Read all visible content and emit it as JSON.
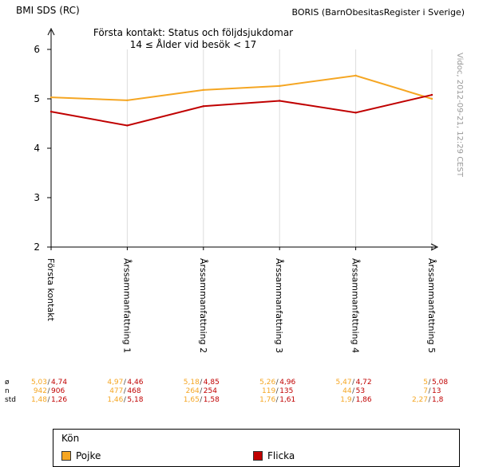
{
  "header": {
    "left_title": "BMI SDS (RC)",
    "right_title": "BORIS (BarnObesitasRegister i Sverige)",
    "side_note": "Vidoc, 2012-09-21, 12:29 CEST"
  },
  "chart_data": {
    "type": "line",
    "title": "Första kontakt: Status och följdsjukdomar",
    "subtitle": "14 ≤ Ålder vid besök < 17",
    "categories": [
      "Första kontakt",
      "Årssammanfattning 1",
      "Årssammanfattning 2",
      "Årssammanfattning 3",
      "Årssammanfattning 4",
      "Årssammanfattning 5"
    ],
    "ylim": [
      2,
      6
    ],
    "yticks": [
      "2",
      "3",
      "4",
      "5",
      "6"
    ],
    "series": [
      {
        "name": "Pojke",
        "color": "#f5a623",
        "values": [
          5.03,
          4.97,
          5.18,
          5.26,
          5.47,
          5.0
        ]
      },
      {
        "name": "Flicka",
        "color": "#c00000",
        "values": [
          4.74,
          4.46,
          4.85,
          4.96,
          4.72,
          5.08
        ]
      }
    ],
    "stats": {
      "row_labels": [
        "ø",
        "n",
        "std"
      ],
      "columns": [
        {
          "mean": [
            "5,03",
            "4,74"
          ],
          "n": [
            "942",
            "906"
          ],
          "std": [
            "1,48",
            "1,26"
          ]
        },
        {
          "mean": [
            "4,97",
            "4,46"
          ],
          "n": [
            "477",
            "468"
          ],
          "std": [
            "1,46",
            "5,18"
          ]
        },
        {
          "mean": [
            "5,18",
            "4,85"
          ],
          "n": [
            "264",
            "254"
          ],
          "std": [
            "1,65",
            "1,58"
          ]
        },
        {
          "mean": [
            "5,26",
            "4,96"
          ],
          "n": [
            "119",
            "135"
          ],
          "std": [
            "1,76",
            "1,61"
          ]
        },
        {
          "mean": [
            "5,47",
            "4,72"
          ],
          "n": [
            "44",
            "53"
          ],
          "std": [
            "1,9",
            "1,86"
          ]
        },
        {
          "mean": [
            "5",
            "5,08"
          ],
          "n": [
            "7",
            "13"
          ],
          "std": [
            "2,27",
            "1,8"
          ]
        }
      ]
    },
    "legend": {
      "title": "Kön",
      "items": [
        {
          "label": "Pojke",
          "color": "#f5a623"
        },
        {
          "label": "Flicka",
          "color": "#c00000"
        }
      ]
    },
    "grid": true,
    "legend_position": "bottom"
  }
}
